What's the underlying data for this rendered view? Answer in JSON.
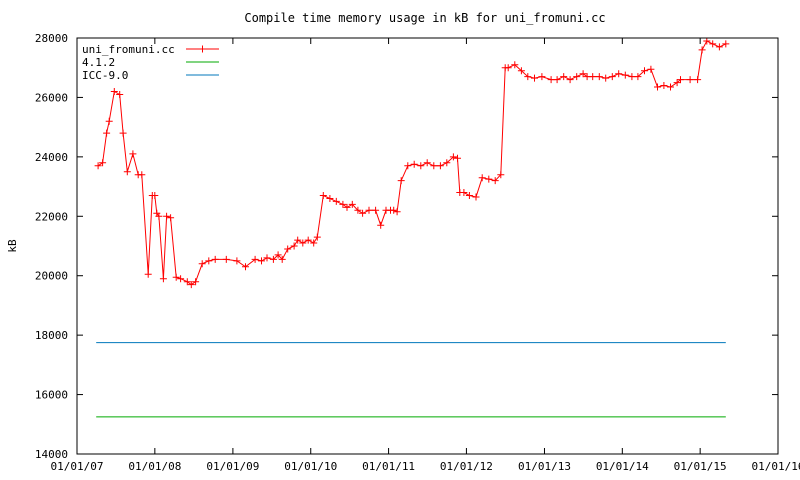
{
  "chart_data": {
    "type": "line",
    "title": "Compile time memory usage in kB for uni_fromuni.cc",
    "xlabel": "",
    "ylabel": "kB",
    "xlim": [
      "2007-01-01",
      "2016-01-01"
    ],
    "ylim": [
      14000,
      28000
    ],
    "x_ticks": [
      "01/01/07",
      "01/01/08",
      "01/01/09",
      "01/01/10",
      "01/01/11",
      "01/01/12",
      "01/01/13",
      "01/01/14",
      "01/01/15",
      "01/01/16"
    ],
    "y_ticks": [
      14000,
      16000,
      18000,
      20000,
      22000,
      24000,
      26000,
      28000
    ],
    "grid": false,
    "legend_position": "top-left",
    "series": [
      {
        "name": "uni_fromuni.cc",
        "color": "#ff0000",
        "marker": "plus",
        "x": [
          "2007-04-10",
          "2007-05-01",
          "2007-05-20",
          "2007-06-01",
          "2007-06-25",
          "2007-07-20",
          "2007-08-05",
          "2007-08-25",
          "2007-09-20",
          "2007-10-15",
          "2007-11-01",
          "2007-12-01",
          "2007-12-20",
          "2008-01-01",
          "2008-01-10",
          "2008-01-20",
          "2008-02-10",
          "2008-02-25",
          "2008-03-15",
          "2008-04-10",
          "2008-05-01",
          "2008-06-01",
          "2008-06-20",
          "2008-07-10",
          "2008-08-10",
          "2008-09-10",
          "2008-10-10",
          "2008-12-01",
          "2009-01-20",
          "2009-03-01",
          "2009-04-15",
          "2009-05-15",
          "2009-06-10",
          "2009-07-10",
          "2009-08-01",
          "2009-08-20",
          "2009-09-15",
          "2009-10-15",
          "2009-11-01",
          "2009-11-25",
          "2009-12-20",
          "2010-01-15",
          "2010-02-01",
          "2010-03-01",
          "2010-04-01",
          "2010-05-01",
          "2010-06-01",
          "2010-06-20",
          "2010-07-15",
          "2010-08-10",
          "2010-09-01",
          "2010-10-01",
          "2010-11-01",
          "2010-11-25",
          "2010-12-20",
          "2011-01-10",
          "2011-01-25",
          "2011-02-10",
          "2011-03-01",
          "2011-04-01",
          "2011-05-01",
          "2011-06-01",
          "2011-07-01",
          "2011-08-01",
          "2011-09-01",
          "2011-10-01",
          "2011-11-01",
          "2011-11-20",
          "2011-12-01",
          "2011-12-20",
          "2012-01-15",
          "2012-02-15",
          "2012-03-15",
          "2012-04-15",
          "2012-05-15",
          "2012-06-10",
          "2012-07-01",
          "2012-07-15",
          "2012-08-15",
          "2012-09-15",
          "2012-10-15",
          "2012-11-15",
          "2012-12-20",
          "2013-02-01",
          "2013-03-01",
          "2013-04-01",
          "2013-05-01",
          "2013-06-01",
          "2013-07-01",
          "2013-07-20",
          "2013-08-15",
          "2013-09-15",
          "2013-10-15",
          "2013-11-15",
          "2013-12-15",
          "2014-01-15",
          "2014-02-15",
          "2014-03-15",
          "2014-04-15",
          "2014-05-15",
          "2014-06-15",
          "2014-07-15",
          "2014-08-15",
          "2014-09-15",
          "2014-10-01",
          "2014-11-15",
          "2014-12-20",
          "2015-01-10",
          "2015-02-01",
          "2015-03-01",
          "2015-04-01",
          "2015-05-01"
        ],
        "y": [
          23700,
          23800,
          24800,
          25200,
          26200,
          26100,
          24800,
          23500,
          24100,
          23400,
          23400,
          20050,
          22700,
          22700,
          22100,
          22000,
          19900,
          22000,
          21950,
          19950,
          19900,
          19800,
          19700,
          19800,
          20400,
          20500,
          20550,
          20550,
          20500,
          20300,
          20550,
          20500,
          20600,
          20550,
          20700,
          20550,
          20900,
          21000,
          21200,
          21100,
          21200,
          21100,
          21300,
          22700,
          22600,
          22500,
          22400,
          22300,
          22400,
          22200,
          22100,
          22200,
          22200,
          21700,
          22200,
          22200,
          22200,
          22150,
          23200,
          23700,
          23750,
          23700,
          23800,
          23700,
          23700,
          23800,
          24000,
          23950,
          22800,
          22800,
          22700,
          22650,
          23300,
          23250,
          23200,
          23400,
          27000,
          27000,
          27100,
          26900,
          26700,
          26650,
          26700,
          26600,
          26600,
          26700,
          26600,
          26700,
          26800,
          26700,
          26700,
          26700,
          26650,
          26700,
          26800,
          26750,
          26700,
          26700,
          26900,
          26950,
          26350,
          26400,
          26350,
          26500,
          26600,
          26600,
          26600,
          27600,
          27900,
          27800,
          27700,
          27800
        ]
      },
      {
        "name": "4.1.2",
        "color": "#00aa00",
        "marker": "none",
        "x": [
          "2007-04-01",
          "2015-05-01"
        ],
        "y": [
          15250,
          15250
        ]
      },
      {
        "name": "ICC-9.0",
        "color": "#0077bb",
        "marker": "none",
        "x": [
          "2007-04-01",
          "2015-05-01"
        ],
        "y": [
          17750,
          17750
        ]
      }
    ]
  }
}
